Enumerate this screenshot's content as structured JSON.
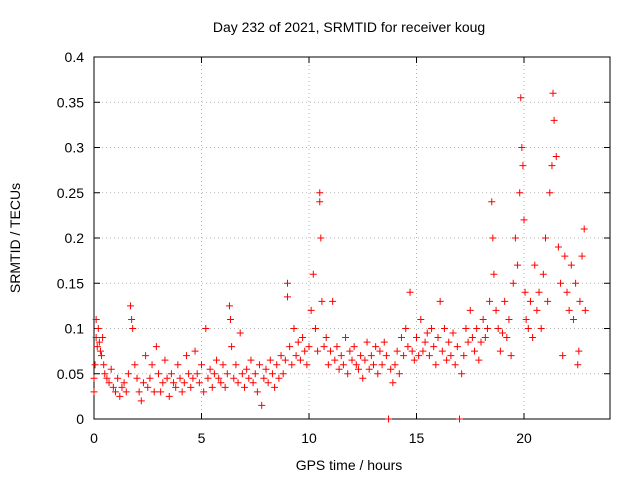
{
  "chart_data": {
    "type": "scatter",
    "title": "Day 232 of 2021, SRMTID for receiver koug",
    "xlabel": "GPS time / hours",
    "ylabel": "SRMTID / TECUs",
    "xlim": [
      0,
      24
    ],
    "ylim": [
      0,
      0.4
    ],
    "xticks": [
      0,
      5,
      10,
      15,
      20
    ],
    "yticks": [
      0,
      0.05,
      0.1,
      0.15,
      0.2,
      0.25,
      0.3,
      0.35,
      0.4
    ],
    "xtick_labels": [
      "0",
      "5",
      "10",
      "15",
      "20"
    ],
    "ytick_labels": [
      "0",
      "0.05",
      "0.1",
      "0.15",
      "0.2",
      "0.25",
      "0.3",
      "0.35",
      "0.4"
    ],
    "grid": true,
    "marker": "+",
    "color": "#ff0000",
    "series": [
      {
        "name": "SRMTID",
        "points": [
          [
            0.0,
            0.03
          ],
          [
            0.0,
            0.045
          ],
          [
            0.05,
            0.06
          ],
          [
            0.1,
            0.09
          ],
          [
            0.1,
            0.11
          ],
          [
            0.15,
            0.08
          ],
          [
            0.2,
            0.1
          ],
          [
            0.25,
            0.085
          ],
          [
            0.3,
            0.075
          ],
          [
            0.35,
            0.07
          ],
          [
            0.4,
            0.09
          ],
          [
            0.45,
            0.06
          ],
          [
            0.5,
            0.05
          ],
          [
            0.6,
            0.045
          ],
          [
            0.7,
            0.04
          ],
          [
            0.8,
            0.055
          ],
          [
            0.9,
            0.035
          ],
          [
            1.0,
            0.03
          ],
          [
            1.1,
            0.045
          ],
          [
            1.2,
            0.025
          ],
          [
            1.3,
            0.035
          ],
          [
            1.4,
            0.04
          ],
          [
            1.5,
            0.03
          ],
          [
            1.6,
            0.05
          ],
          [
            1.7,
            0.125
          ],
          [
            1.75,
            0.11
          ],
          [
            1.8,
            0.1
          ],
          [
            1.9,
            0.06
          ],
          [
            2.0,
            0.045
          ],
          [
            2.1,
            0.03
          ],
          [
            2.2,
            0.02
          ],
          [
            2.3,
            0.04
          ],
          [
            2.4,
            0.07
          ],
          [
            2.5,
            0.035
          ],
          [
            2.6,
            0.045
          ],
          [
            2.7,
            0.06
          ],
          [
            2.8,
            0.03
          ],
          [
            2.9,
            0.08
          ],
          [
            3.0,
            0.05
          ],
          [
            3.1,
            0.03
          ],
          [
            3.2,
            0.04
          ],
          [
            3.3,
            0.065
          ],
          [
            3.4,
            0.045
          ],
          [
            3.5,
            0.025
          ],
          [
            3.6,
            0.05
          ],
          [
            3.7,
            0.04
          ],
          [
            3.8,
            0.035
          ],
          [
            3.9,
            0.06
          ],
          [
            4.0,
            0.045
          ],
          [
            4.1,
            0.03
          ],
          [
            4.2,
            0.04
          ],
          [
            4.3,
            0.07
          ],
          [
            4.4,
            0.05
          ],
          [
            4.5,
            0.035
          ],
          [
            4.6,
            0.045
          ],
          [
            4.7,
            0.075
          ],
          [
            4.8,
            0.05
          ],
          [
            4.9,
            0.04
          ],
          [
            5.0,
            0.06
          ],
          [
            5.1,
            0.03
          ],
          [
            5.2,
            0.1
          ],
          [
            5.3,
            0.045
          ],
          [
            5.4,
            0.055
          ],
          [
            5.5,
            0.035
          ],
          [
            5.6,
            0.05
          ],
          [
            5.7,
            0.065
          ],
          [
            5.8,
            0.045
          ],
          [
            5.9,
            0.04
          ],
          [
            6.0,
            0.06
          ],
          [
            6.1,
            0.035
          ],
          [
            6.2,
            0.05
          ],
          [
            6.3,
            0.125
          ],
          [
            6.35,
            0.11
          ],
          [
            6.4,
            0.08
          ],
          [
            6.5,
            0.045
          ],
          [
            6.6,
            0.06
          ],
          [
            6.7,
            0.04
          ],
          [
            6.8,
            0.095
          ],
          [
            6.9,
            0.05
          ],
          [
            7.0,
            0.035
          ],
          [
            7.1,
            0.055
          ],
          [
            7.2,
            0.045
          ],
          [
            7.3,
            0.065
          ],
          [
            7.4,
            0.04
          ],
          [
            7.5,
            0.05
          ],
          [
            7.6,
            0.03
          ],
          [
            7.7,
            0.06
          ],
          [
            7.8,
            0.015
          ],
          [
            7.9,
            0.045
          ],
          [
            8.0,
            0.055
          ],
          [
            8.1,
            0.04
          ],
          [
            8.2,
            0.065
          ],
          [
            8.3,
            0.05
          ],
          [
            8.4,
            0.035
          ],
          [
            8.5,
            0.06
          ],
          [
            8.6,
            0.045
          ],
          [
            8.7,
            0.07
          ],
          [
            8.8,
            0.05
          ],
          [
            8.9,
            0.065
          ],
          [
            9.0,
            0.15
          ],
          [
            9.0,
            0.135
          ],
          [
            9.1,
            0.08
          ],
          [
            9.2,
            0.06
          ],
          [
            9.3,
            0.1
          ],
          [
            9.4,
            0.07
          ],
          [
            9.5,
            0.085
          ],
          [
            9.6,
            0.065
          ],
          [
            9.7,
            0.09
          ],
          [
            9.8,
            0.075
          ],
          [
            9.9,
            0.06
          ],
          [
            10.0,
            0.08
          ],
          [
            10.1,
            0.12
          ],
          [
            10.2,
            0.16
          ],
          [
            10.3,
            0.1
          ],
          [
            10.4,
            0.075
          ],
          [
            10.5,
            0.25
          ],
          [
            10.5,
            0.24
          ],
          [
            10.55,
            0.2
          ],
          [
            10.6,
            0.13
          ],
          [
            10.7,
            0.08
          ],
          [
            10.8,
            0.09
          ],
          [
            10.9,
            0.06
          ],
          [
            11.0,
            0.075
          ],
          [
            11.1,
            0.13
          ],
          [
            11.2,
            0.065
          ],
          [
            11.3,
            0.08
          ],
          [
            11.4,
            0.055
          ],
          [
            11.5,
            0.07
          ],
          [
            11.6,
            0.06
          ],
          [
            11.7,
            0.09
          ],
          [
            11.8,
            0.05
          ],
          [
            11.9,
            0.075
          ],
          [
            12.0,
            0.065
          ],
          [
            12.1,
            0.08
          ],
          [
            12.2,
            0.06
          ],
          [
            12.3,
            0.055
          ],
          [
            12.4,
            0.07
          ],
          [
            12.5,
            0.045
          ],
          [
            12.6,
            0.065
          ],
          [
            12.7,
            0.085
          ],
          [
            12.8,
            0.055
          ],
          [
            12.9,
            0.07
          ],
          [
            13.0,
            0.06
          ],
          [
            13.1,
            0.08
          ],
          [
            13.2,
            0.05
          ],
          [
            13.3,
            0.075
          ],
          [
            13.4,
            0.06
          ],
          [
            13.5,
            0.085
          ],
          [
            13.6,
            0.07
          ],
          [
            13.7,
            0.0
          ],
          [
            13.8,
            0.055
          ],
          [
            13.9,
            0.04
          ],
          [
            14.0,
            0.06
          ],
          [
            14.1,
            0.075
          ],
          [
            14.2,
            0.05
          ],
          [
            14.3,
            0.09
          ],
          [
            14.4,
            0.07
          ],
          [
            14.5,
            0.1
          ],
          [
            14.6,
            0.08
          ],
          [
            14.7,
            0.14
          ],
          [
            14.8,
            0.075
          ],
          [
            14.9,
            0.065
          ],
          [
            15.0,
            0.09
          ],
          [
            15.1,
            0.07
          ],
          [
            15.2,
            0.11
          ],
          [
            15.3,
            0.075
          ],
          [
            15.4,
            0.085
          ],
          [
            15.5,
            0.095
          ],
          [
            15.6,
            0.07
          ],
          [
            15.7,
            0.1
          ],
          [
            15.8,
            0.08
          ],
          [
            15.9,
            0.06
          ],
          [
            16.0,
            0.09
          ],
          [
            16.1,
            0.13
          ],
          [
            16.2,
            0.075
          ],
          [
            16.3,
            0.1
          ],
          [
            16.4,
            0.065
          ],
          [
            16.5,
            0.085
          ],
          [
            16.6,
            0.07
          ],
          [
            16.7,
            0.095
          ],
          [
            16.8,
            0.06
          ],
          [
            16.9,
            0.08
          ],
          [
            17.0,
            0.0
          ],
          [
            17.1,
            0.05
          ],
          [
            17.2,
            0.07
          ],
          [
            17.3,
            0.1
          ],
          [
            17.4,
            0.085
          ],
          [
            17.5,
            0.12
          ],
          [
            17.6,
            0.09
          ],
          [
            17.7,
            0.075
          ],
          [
            17.8,
            0.1
          ],
          [
            17.9,
            0.065
          ],
          [
            18.0,
            0.085
          ],
          [
            18.1,
            0.11
          ],
          [
            18.2,
            0.09
          ],
          [
            18.3,
            0.1
          ],
          [
            18.4,
            0.13
          ],
          [
            18.5,
            0.24
          ],
          [
            18.55,
            0.2
          ],
          [
            18.6,
            0.16
          ],
          [
            18.7,
            0.12
          ],
          [
            18.8,
            0.1
          ],
          [
            18.9,
            0.075
          ],
          [
            19.0,
            0.095
          ],
          [
            19.1,
            0.13
          ],
          [
            19.2,
            0.09
          ],
          [
            19.3,
            0.11
          ],
          [
            19.4,
            0.07
          ],
          [
            19.5,
            0.15
          ],
          [
            19.6,
            0.2
          ],
          [
            19.7,
            0.17
          ],
          [
            19.8,
            0.25
          ],
          [
            19.85,
            0.355
          ],
          [
            19.9,
            0.3
          ],
          [
            19.95,
            0.28
          ],
          [
            20.0,
            0.22
          ],
          [
            20.05,
            0.14
          ],
          [
            20.1,
            0.11
          ],
          [
            20.2,
            0.1
          ],
          [
            20.3,
            0.13
          ],
          [
            20.4,
            0.09
          ],
          [
            20.5,
            0.17
          ],
          [
            20.6,
            0.12
          ],
          [
            20.7,
            0.14
          ],
          [
            20.8,
            0.1
          ],
          [
            20.9,
            0.16
          ],
          [
            21.0,
            0.2
          ],
          [
            21.1,
            0.13
          ],
          [
            21.2,
            0.25
          ],
          [
            21.3,
            0.28
          ],
          [
            21.35,
            0.36
          ],
          [
            21.4,
            0.33
          ],
          [
            21.5,
            0.29
          ],
          [
            21.6,
            0.19
          ],
          [
            21.7,
            0.15
          ],
          [
            21.8,
            0.07
          ],
          [
            21.9,
            0.18
          ],
          [
            22.0,
            0.14
          ],
          [
            22.1,
            0.12
          ],
          [
            22.2,
            0.17
          ],
          [
            22.3,
            0.11
          ],
          [
            22.4,
            0.15
          ],
          [
            22.5,
            0.06
          ],
          [
            22.55,
            0.075
          ],
          [
            22.6,
            0.13
          ],
          [
            22.7,
            0.18
          ],
          [
            22.8,
            0.21
          ],
          [
            22.85,
            0.12
          ]
        ]
      }
    ]
  }
}
